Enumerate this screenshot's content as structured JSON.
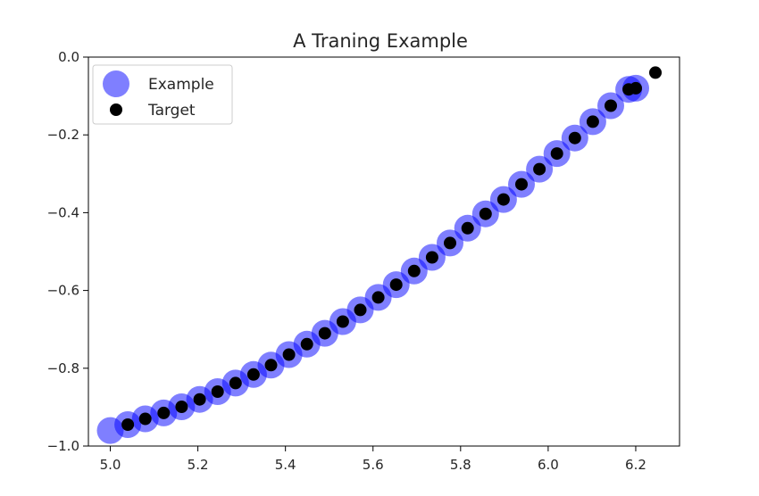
{
  "chart_data": {
    "type": "scatter",
    "title": "A Traning Example",
    "xlabel": "",
    "ylabel": "",
    "xlim": [
      4.95,
      6.3
    ],
    "ylim": [
      -1.0,
      0.0
    ],
    "xticks": [
      5.0,
      5.2,
      5.4,
      5.6,
      5.8,
      6.0,
      6.2
    ],
    "xtick_labels": [
      "5.0",
      "5.2",
      "5.4",
      "5.6",
      "5.8",
      "6.0",
      "6.2"
    ],
    "yticks": [
      0.0,
      -0.2,
      -0.4,
      -0.6,
      -0.8,
      -1.0
    ],
    "ytick_labels": [
      "0.0",
      "−0.2",
      "−0.4",
      "−0.6",
      "−0.8",
      "−1.0"
    ],
    "grid": false,
    "legend_position": "top-left",
    "series": [
      {
        "name": "Example",
        "color": "#0000ff",
        "alpha": 0.5,
        "marker": "large-circle",
        "x": [
          5.0,
          5.04,
          5.08,
          5.122,
          5.163,
          5.204,
          5.245,
          5.286,
          5.327,
          5.367,
          5.408,
          5.449,
          5.49,
          5.531,
          5.571,
          5.612,
          5.653,
          5.694,
          5.735,
          5.776,
          5.816,
          5.857,
          5.898,
          5.939,
          5.98,
          6.02,
          6.061,
          6.102,
          6.143,
          6.184,
          6.2
        ],
        "y": [
          -0.96,
          -0.945,
          -0.93,
          -0.915,
          -0.899,
          -0.88,
          -0.86,
          -0.838,
          -0.816,
          -0.792,
          -0.765,
          -0.738,
          -0.71,
          -0.68,
          -0.65,
          -0.618,
          -0.585,
          -0.55,
          -0.515,
          -0.478,
          -0.44,
          -0.403,
          -0.366,
          -0.327,
          -0.288,
          -0.248,
          -0.208,
          -0.166,
          -0.125,
          -0.083,
          -0.08
        ]
      },
      {
        "name": "Target",
        "color": "#000000",
        "alpha": 1.0,
        "marker": "small-circle",
        "x": [
          5.04,
          5.08,
          5.122,
          5.163,
          5.204,
          5.245,
          5.286,
          5.327,
          5.367,
          5.408,
          5.449,
          5.49,
          5.531,
          5.571,
          5.612,
          5.653,
          5.694,
          5.735,
          5.776,
          5.816,
          5.857,
          5.898,
          5.939,
          5.98,
          6.02,
          6.061,
          6.102,
          6.143,
          6.184,
          6.2,
          6.245
        ],
        "y": [
          -0.945,
          -0.93,
          -0.915,
          -0.899,
          -0.88,
          -0.86,
          -0.838,
          -0.816,
          -0.792,
          -0.765,
          -0.738,
          -0.71,
          -0.68,
          -0.65,
          -0.618,
          -0.585,
          -0.55,
          -0.515,
          -0.478,
          -0.44,
          -0.403,
          -0.366,
          -0.327,
          -0.288,
          -0.248,
          -0.208,
          -0.166,
          -0.125,
          -0.083,
          -0.08,
          -0.04
        ]
      }
    ]
  }
}
